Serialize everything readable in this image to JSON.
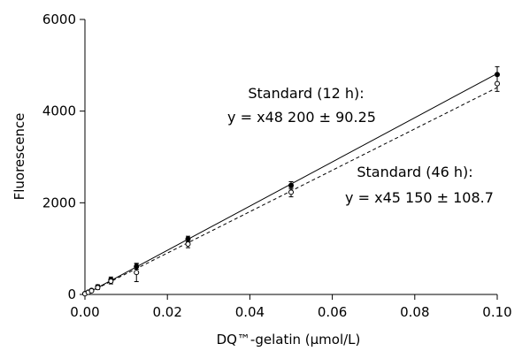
{
  "chart_data": {
    "type": "scatter",
    "xlabel": "DQ™-gelatin (μmol/L)",
    "ylabel": "Fluorescence",
    "xlim": [
      0,
      0.1
    ],
    "ylim": [
      0,
      6000
    ],
    "x_ticks": [
      "0.00",
      "0.02",
      "0.04",
      "0.06",
      "0.08",
      "0.10"
    ],
    "y_ticks": [
      "0",
      "2000",
      "4000",
      "6000"
    ],
    "grid": false,
    "series": [
      {
        "label_line1": "Standard (12 h):",
        "label_line2": "y = x48 200 ± 90.25",
        "marker": "filled-circle",
        "line_style": "solid",
        "fit": {
          "slope": 48200,
          "intercept": 0,
          "x_range": [
            0,
            0.1
          ]
        },
        "points": [
          {
            "x": 0.0,
            "y": 20,
            "err": 10
          },
          {
            "x": 0.0008,
            "y": 50,
            "err": 15
          },
          {
            "x": 0.0016,
            "y": 90,
            "err": 20
          },
          {
            "x": 0.0031,
            "y": 170,
            "err": 40
          },
          {
            "x": 0.0063,
            "y": 320,
            "err": 60
          },
          {
            "x": 0.0125,
            "y": 610,
            "err": 60
          },
          {
            "x": 0.025,
            "y": 1210,
            "err": 60
          },
          {
            "x": 0.05,
            "y": 2380,
            "err": 80
          },
          {
            "x": 0.1,
            "y": 4800,
            "err": 170
          }
        ]
      },
      {
        "label_line1": "Standard (46 h):",
        "label_line2": "y = x45 150 ± 108.7",
        "marker": "open-circle",
        "line_style": "dashed",
        "fit": {
          "slope": 45150,
          "intercept": 0,
          "x_range": [
            0,
            0.1
          ]
        },
        "points": [
          {
            "x": 0.0,
            "y": 15,
            "err": 10
          },
          {
            "x": 0.0008,
            "y": 45,
            "err": 15
          },
          {
            "x": 0.0016,
            "y": 80,
            "err": 20
          },
          {
            "x": 0.0031,
            "y": 150,
            "err": 40
          },
          {
            "x": 0.0063,
            "y": 290,
            "err": 60
          },
          {
            "x": 0.0125,
            "y": 480,
            "err": 200
          },
          {
            "x": 0.025,
            "y": 1100,
            "err": 80
          },
          {
            "x": 0.05,
            "y": 2230,
            "err": 100
          },
          {
            "x": 0.1,
            "y": 4600,
            "err": 170
          }
        ]
      }
    ]
  }
}
